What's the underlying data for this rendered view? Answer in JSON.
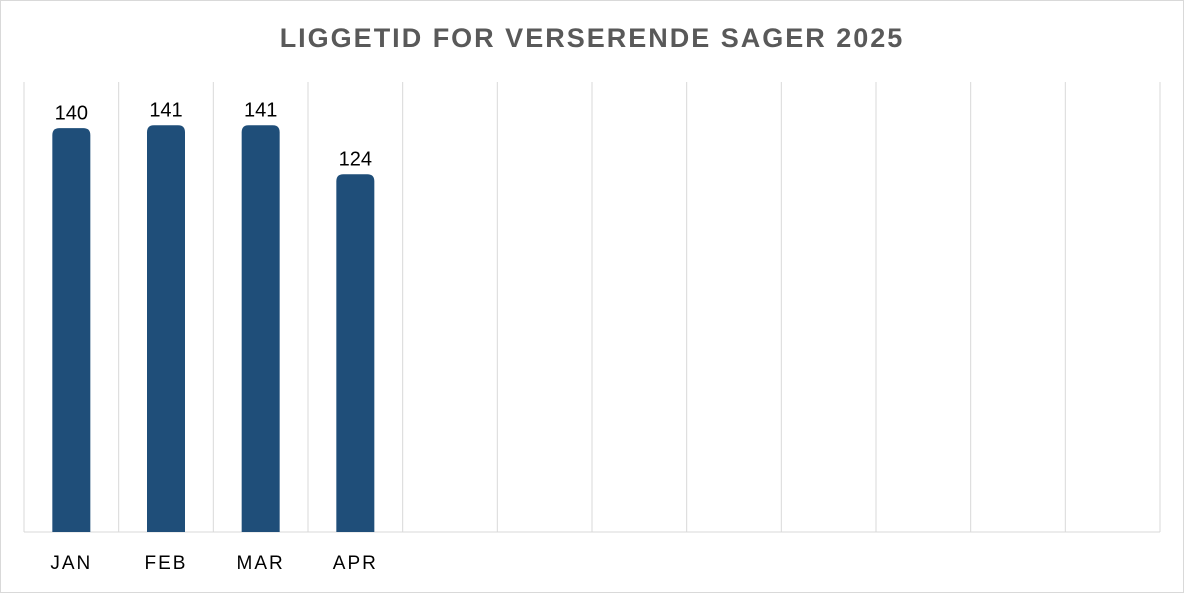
{
  "chart_data": {
    "type": "bar",
    "title": "LIGGETID FOR VERSERENDE SAGER 2025",
    "categories": [
      "JAN",
      "FEB",
      "MAR",
      "APR",
      null,
      null,
      null,
      null,
      null,
      null,
      null,
      null
    ],
    "values": [
      140,
      141,
      141,
      124,
      null,
      null,
      null,
      null,
      null,
      null,
      null,
      null
    ],
    "color": "#1f4e79",
    "ylim": [
      0,
      156
    ],
    "grid": true
  }
}
